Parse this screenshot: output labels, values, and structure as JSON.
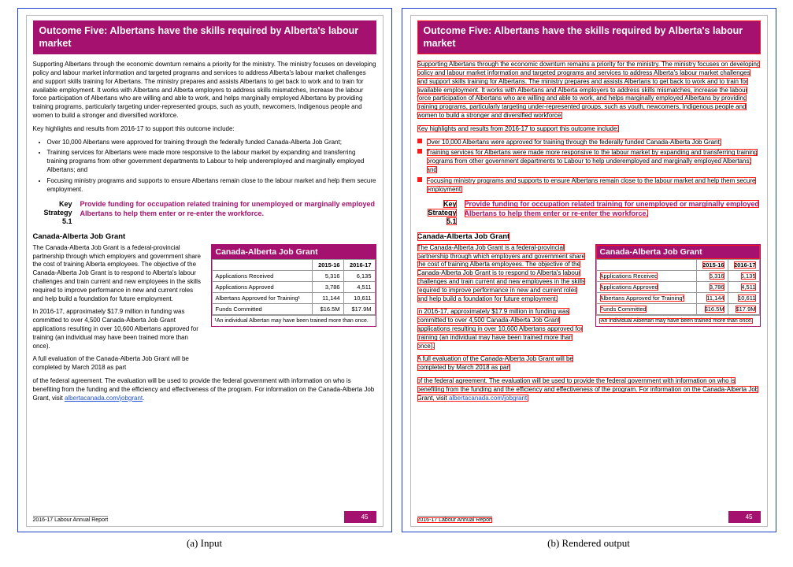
{
  "header": {
    "title": "Outcome Five: Albertans have the skills required by Alberta's labour market"
  },
  "intro_para": "Supporting Albertans through the economic downturn remains a priority for the ministry. The ministry focuses on developing policy and labour market information and targeted programs and services to address Alberta's labour market challenges and support skills training for Albertans. The ministry prepares and assists Albertans to get back to work and to train for available employment. It works with Albertans and Alberta employers to address skills mismatches, increase the labour force participation of Albertans who are willing and able to work, and helps marginally employed Albertans by providing training programs, particularly targeting under-represented groups, such as youth, newcomers, Indigenous people and women to build a stronger and diversified workforce.",
  "highlights_intro": "Key highlights and results from 2016-17 to support this outcome include:",
  "bullets": [
    "Over 10,000 Albertans were approved for training through the federally funded Canada-Alberta Job Grant;",
    "Training services for Albertans were made more responsive to the labour market by expanding and transferring training programs from other government departments to Labour to help underemployed and marginally employed Albertans; and",
    "Focusing ministry programs and supports to ensure Albertans remain close to the labour market and help them secure employment."
  ],
  "key_strategy": {
    "label_line1": "Key",
    "label_line2": "Strategy",
    "label_line3": "5.1",
    "text": "Provide funding for occupation related training for unemployed or marginally employed Albertans to help them enter or re-enter the workforce."
  },
  "subhead": "Canada-Alberta Job Grant",
  "cajg_para1": "The Canada-Alberta Job Grant is a federal-provincial partnership through which employers and government share the cost of training Alberta employees. The objective of the Canada-Alberta Job Grant is to respond to Alberta's labour challenges and train current and new employees in the skills required to improve performance in new and current roles and help build a foundation for future employment.",
  "cajg_para2": "In 2016-17, approximately $17.9 million in funding was committed to over 4,500 Canada-Alberta Job Grant applications resulting in over 10,600 Albertans approved for training (an individual may have been trained more than once).",
  "cajg_para3a": "A full evaluation of the Canada-Alberta Job Grant will be completed by March 2018 as part",
  "cajg_para3b": "of the federal agreement. The evaluation will be used to provide the federal government with information on who is benefiting from the funding and the efficiency and effectiveness of the program. For information on the Canada-Alberta Job Grant, visit ",
  "cajg_link": "albertacanada.com/jobgrant",
  "table": {
    "title": "Canada-Alberta Job Grant",
    "cols": [
      "",
      "2015-16",
      "2016-17"
    ],
    "rows": [
      [
        "Applications Received",
        "5,316",
        "6,135"
      ],
      [
        "Applications Approved",
        "3,786",
        "4,511"
      ],
      [
        "Albertans Approved for Training¹",
        "11,144",
        "10,611"
      ],
      [
        "Funds Committed",
        "$16.5M",
        "$17.9M"
      ]
    ],
    "footnote": "¹An individual Albertan may have been trained more than once."
  },
  "footer": {
    "report_label": "2016-17 Labour Annual Report",
    "page_number": "45"
  },
  "captions": {
    "a": "(a) Input",
    "b": "(b) Rendered output"
  },
  "colors": {
    "brand": "#a5116e",
    "panel_border": "#2040d0",
    "annotation_red": "#ff1a1a",
    "link": "#1a4fd8"
  }
}
